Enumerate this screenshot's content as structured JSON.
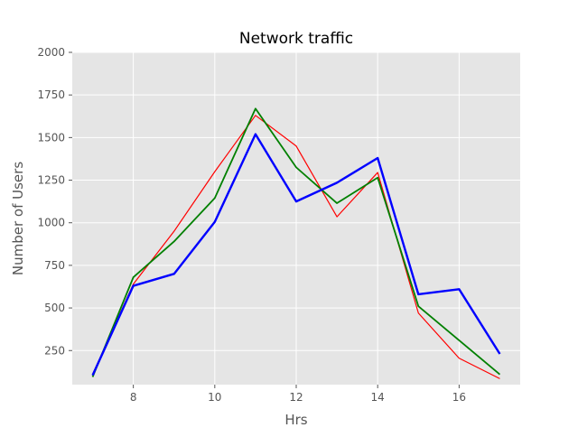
{
  "chart_data": {
    "type": "line",
    "title": "Network traffic",
    "xlabel": "Hrs",
    "ylabel": "Number of Users",
    "x": [
      7,
      8,
      9,
      10,
      11,
      12,
      13,
      14,
      15,
      16,
      17
    ],
    "xlim": [
      6.5,
      17.5
    ],
    "ylim": [
      50,
      2000
    ],
    "xticks": [
      8,
      10,
      12,
      14,
      16
    ],
    "yticks": [
      250,
      500,
      750,
      1000,
      1250,
      1500,
      1750,
      2000
    ],
    "grid": true,
    "background": "#E5E5E5",
    "grid_color": "#FFFFFF",
    "series": [
      {
        "color": "#FF0000",
        "line": "thin",
        "values": [
          110,
          640,
          950,
          1300,
          1630,
          1450,
          1035,
          1295,
          470,
          205,
          85
        ]
      },
      {
        "color": "#008000",
        "line": "medium",
        "values": [
          95,
          680,
          890,
          1145,
          1670,
          1325,
          1115,
          1265,
          510,
          310,
          110
        ]
      },
      {
        "color": "#0000FF",
        "line": "thick",
        "values": [
          105,
          630,
          700,
          1005,
          1520,
          1125,
          1235,
          1380,
          580,
          610,
          230
        ]
      }
    ]
  }
}
